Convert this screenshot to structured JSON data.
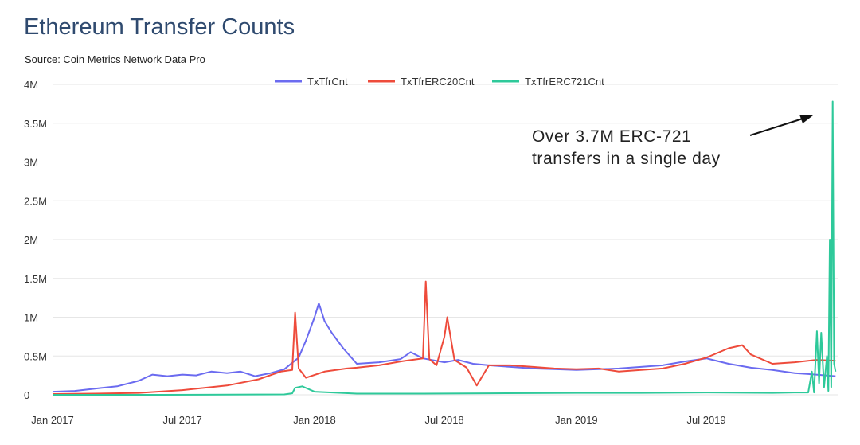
{
  "header": {
    "title": "Ethereum Transfer Counts",
    "source": "Source: Coin Metrics Network Data Pro"
  },
  "chart_data": {
    "type": "line",
    "title": "Ethereum Transfer Counts",
    "xlabel": "",
    "ylabel": "",
    "ylim": [
      0,
      4000000
    ],
    "y_ticks": [
      {
        "value": 0,
        "label": "0"
      },
      {
        "value": 500000,
        "label": "0.5M"
      },
      {
        "value": 1000000,
        "label": "1M"
      },
      {
        "value": 1500000,
        "label": "1.5M"
      },
      {
        "value": 2000000,
        "label": "2M"
      },
      {
        "value": 2500000,
        "label": "2.5M"
      },
      {
        "value": 3000000,
        "label": "3M"
      },
      {
        "value": 3500000,
        "label": "3.5M"
      },
      {
        "value": 4000000,
        "label": "4M"
      }
    ],
    "x_ticks": [
      {
        "value": "2017-01-01",
        "label": "Jan 2017"
      },
      {
        "value": "2017-07-01",
        "label": "Jul 2017"
      },
      {
        "value": "2018-01-01",
        "label": "Jan 2018"
      },
      {
        "value": "2018-07-01",
        "label": "Jul 2018"
      },
      {
        "value": "2019-01-01",
        "label": "Jan 2019"
      },
      {
        "value": "2019-07-01",
        "label": "Jul 2019"
      }
    ],
    "xlim": [
      "2017-01-01",
      "2019-12-31"
    ],
    "grid": true,
    "legend_position": "top-center",
    "annotation": {
      "lines": [
        "Over 3.7M ERC-721",
        "transfers in a single day"
      ]
    },
    "series": [
      {
        "name": "TxTfrCnt",
        "color": "#6b6bf0",
        "x": [
          "2017-01-01",
          "2017-02-01",
          "2017-03-01",
          "2017-04-01",
          "2017-05-01",
          "2017-05-20",
          "2017-06-10",
          "2017-07-01",
          "2017-07-20",
          "2017-08-10",
          "2017-09-01",
          "2017-09-20",
          "2017-10-10",
          "2017-11-01",
          "2017-11-20",
          "2017-12-10",
          "2017-12-20",
          "2018-01-01",
          "2018-01-07",
          "2018-01-15",
          "2018-01-25",
          "2018-02-10",
          "2018-03-01",
          "2018-04-01",
          "2018-05-01",
          "2018-05-15",
          "2018-06-01",
          "2018-07-01",
          "2018-07-20",
          "2018-08-10",
          "2018-09-01",
          "2018-10-01",
          "2018-11-01",
          "2018-12-01",
          "2019-01-01",
          "2019-02-01",
          "2019-03-01",
          "2019-04-01",
          "2019-05-01",
          "2019-06-01",
          "2019-07-01",
          "2019-08-01",
          "2019-09-01",
          "2019-10-01",
          "2019-11-01",
          "2019-12-01",
          "2019-12-28"
        ],
        "values": [
          40000,
          50000,
          80000,
          110000,
          180000,
          260000,
          240000,
          260000,
          250000,
          300000,
          280000,
          300000,
          240000,
          280000,
          330000,
          480000,
          700000,
          1000000,
          1180000,
          950000,
          800000,
          600000,
          400000,
          420000,
          460000,
          550000,
          470000,
          420000,
          450000,
          400000,
          380000,
          360000,
          340000,
          330000,
          320000,
          330000,
          340000,
          360000,
          380000,
          430000,
          470000,
          400000,
          350000,
          320000,
          280000,
          260000,
          240000
        ]
      },
      {
        "name": "TxTfrERC20Cnt",
        "color": "#ee4b3b",
        "x": [
          "2017-01-01",
          "2017-03-01",
          "2017-05-01",
          "2017-07-01",
          "2017-09-01",
          "2017-10-15",
          "2017-11-15",
          "2017-12-01",
          "2017-12-05",
          "2017-12-10",
          "2017-12-20",
          "2018-01-15",
          "2018-02-15",
          "2018-03-01",
          "2018-04-01",
          "2018-05-01",
          "2018-05-25",
          "2018-06-01",
          "2018-06-05",
          "2018-06-10",
          "2018-06-20",
          "2018-07-01",
          "2018-07-05",
          "2018-07-15",
          "2018-08-01",
          "2018-08-15",
          "2018-09-01",
          "2018-10-01",
          "2018-11-01",
          "2018-12-01",
          "2019-01-01",
          "2019-02-01",
          "2019-03-01",
          "2019-04-01",
          "2019-05-01",
          "2019-06-01",
          "2019-07-01",
          "2019-08-01",
          "2019-08-20",
          "2019-09-01",
          "2019-10-01",
          "2019-11-01",
          "2019-12-01",
          "2019-12-28"
        ],
        "values": [
          10000,
          15000,
          25000,
          60000,
          120000,
          200000,
          300000,
          320000,
          1060000,
          340000,
          220000,
          300000,
          340000,
          350000,
          380000,
          430000,
          460000,
          470000,
          1460000,
          460000,
          380000,
          750000,
          1000000,
          450000,
          350000,
          120000,
          380000,
          380000,
          360000,
          340000,
          330000,
          340000,
          300000,
          320000,
          340000,
          400000,
          480000,
          600000,
          640000,
          520000,
          400000,
          420000,
          450000,
          440000
        ]
      },
      {
        "name": "TxTfrERC721Cnt",
        "color": "#2ec99a",
        "x": [
          "2017-01-01",
          "2017-06-01",
          "2017-11-20",
          "2017-12-01",
          "2017-12-05",
          "2017-12-15",
          "2018-01-01",
          "2018-03-01",
          "2018-06-01",
          "2018-09-01",
          "2019-01-01",
          "2019-04-01",
          "2019-07-01",
          "2019-10-01",
          "2019-11-01",
          "2019-11-20",
          "2019-11-25",
          "2019-11-28",
          "2019-12-02",
          "2019-12-05",
          "2019-12-08",
          "2019-12-12",
          "2019-12-16",
          "2019-12-18",
          "2019-12-20",
          "2019-12-22",
          "2019-12-24",
          "2019-12-26",
          "2019-12-28"
        ],
        "values": [
          0,
          0,
          5000,
          20000,
          90000,
          110000,
          40000,
          15000,
          15000,
          20000,
          25000,
          25000,
          30000,
          25000,
          30000,
          30000,
          300000,
          30000,
          820000,
          150000,
          800000,
          100000,
          500000,
          50000,
          2000000,
          100000,
          3780000,
          400000,
          300000
        ]
      }
    ]
  }
}
